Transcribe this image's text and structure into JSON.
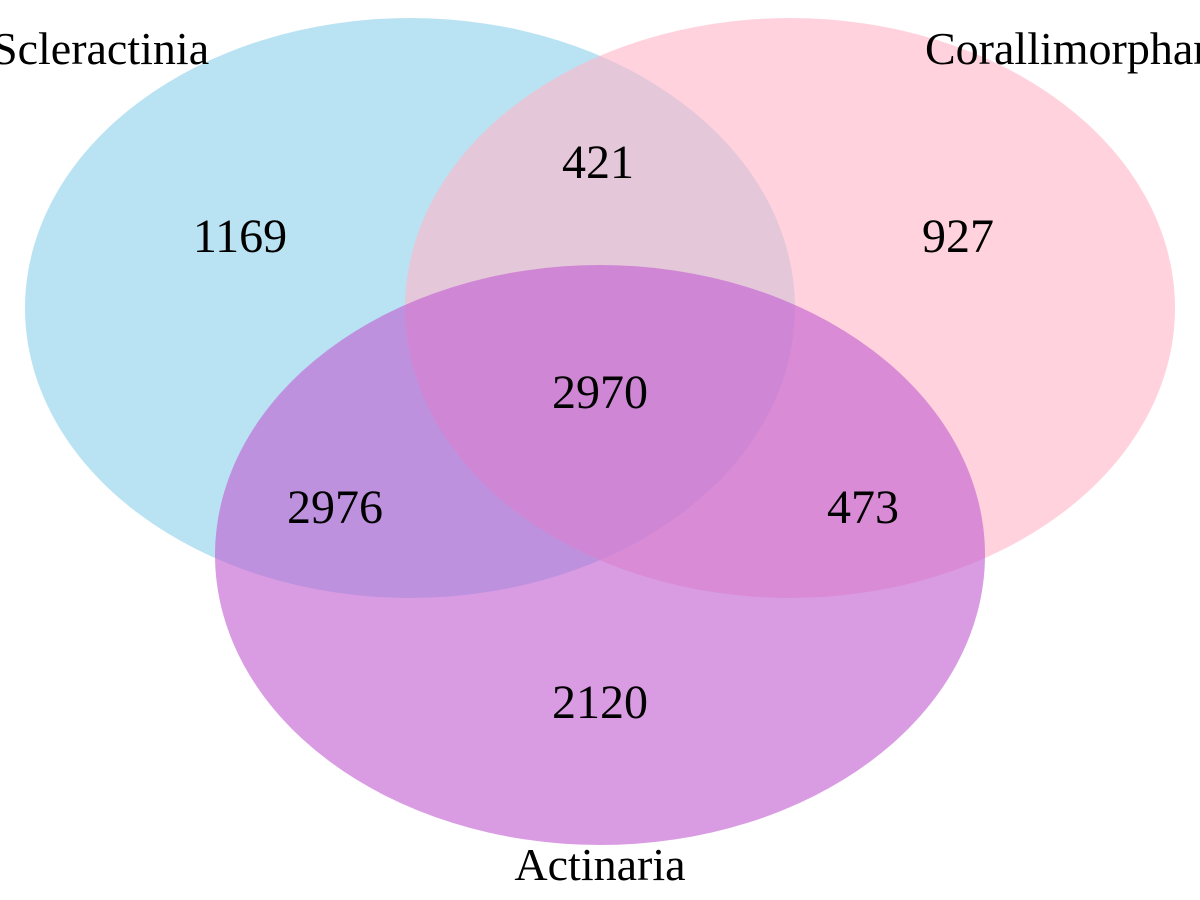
{
  "sets": [
    {
      "id": "scleractinia",
      "label": "Scleractinia",
      "color": "#87CEEB"
    },
    {
      "id": "corallimorpharia",
      "label": "Corallimorpharia",
      "color": "#FFB6C8"
    },
    {
      "id": "actinaria",
      "label": "Actinaria",
      "color": "#C15FD2"
    }
  ],
  "regions": {
    "scleractinia_only": "1169",
    "corallimorpharia_only": "927",
    "actinaria_only": "2120",
    "scleractinia_corallimorpharia": "421",
    "scleractinia_actinaria": "2976",
    "corallimorpharia_actinaria": "473",
    "all_three": "2970"
  }
}
